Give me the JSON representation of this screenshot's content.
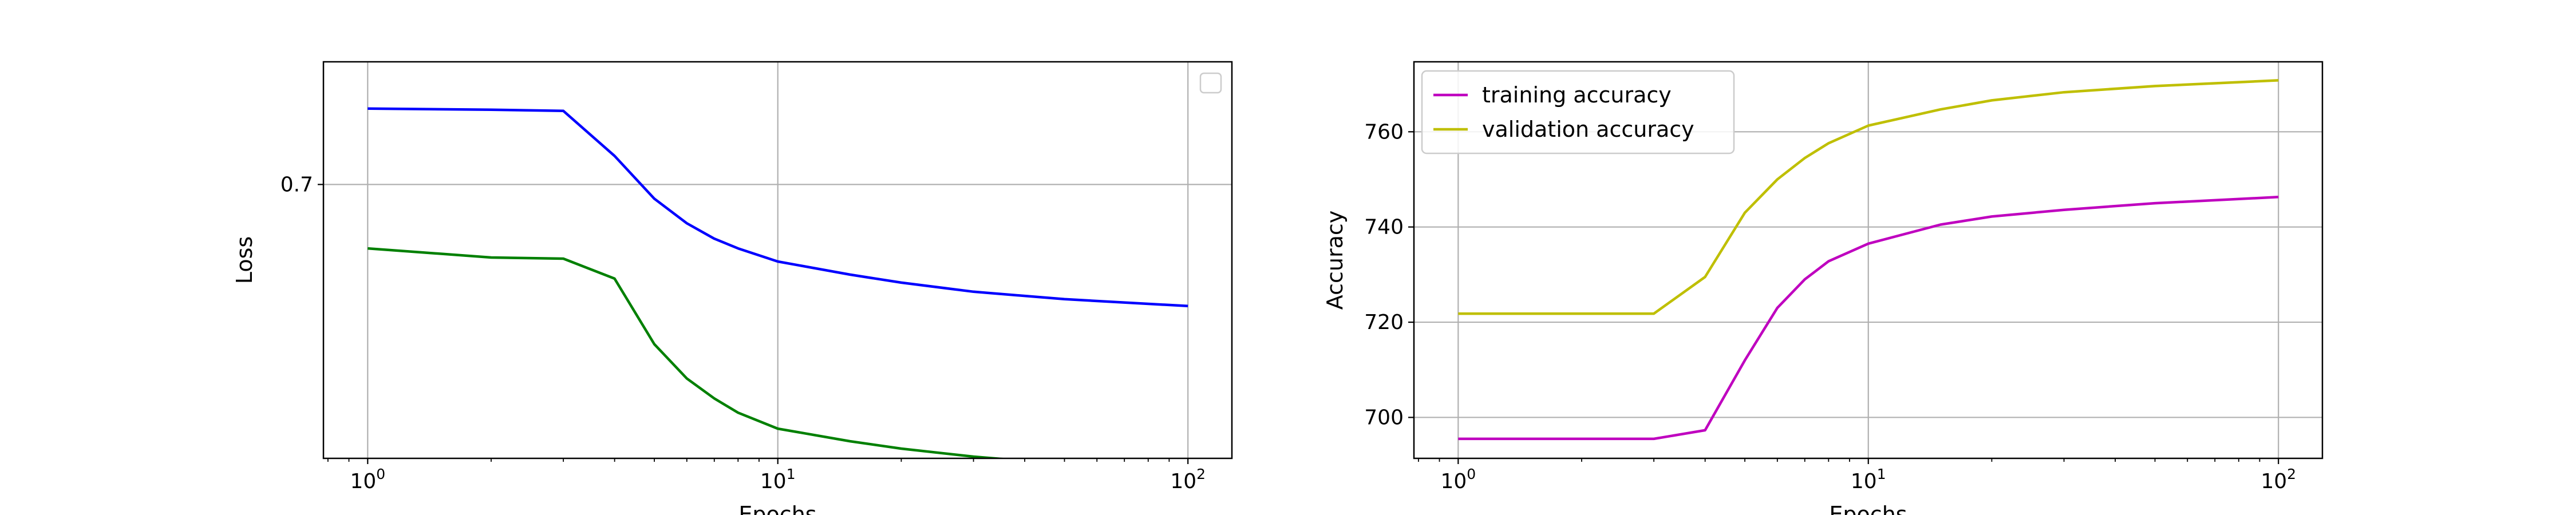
{
  "chart_data": [
    {
      "type": "line",
      "xlabel": "Epochs",
      "ylabel": "Loss",
      "xscale": "log",
      "xlim": [
        0.78,
        128
      ],
      "ylim": [
        0.22,
        0.915
      ],
      "grid": true,
      "legend": {
        "placement": "upper right",
        "entries": []
      },
      "xticks": [
        {
          "value": 1,
          "base": "10",
          "exp": "0"
        },
        {
          "value": 10,
          "base": "10",
          "exp": "1"
        },
        {
          "value": 100,
          "base": "10",
          "exp": "2"
        }
      ],
      "yticks": [
        {
          "value": 0.7,
          "label": "0.7"
        }
      ],
      "series": [
        {
          "color": "#0000ff",
          "points": [
            [
              1,
              0.833
            ],
            [
              2,
              0.831
            ],
            [
              3,
              0.829
            ],
            [
              4,
              0.75
            ],
            [
              5,
              0.675
            ],
            [
              6,
              0.632
            ],
            [
              7,
              0.605
            ],
            [
              8,
              0.588
            ],
            [
              10,
              0.565
            ],
            [
              15,
              0.542
            ],
            [
              20,
              0.528
            ],
            [
              30,
              0.512
            ],
            [
              50,
              0.499
            ],
            [
              100,
              0.487
            ]
          ]
        },
        {
          "color": "#008000",
          "points": [
            [
              1,
              0.588
            ],
            [
              2,
              0.572
            ],
            [
              3,
              0.57
            ],
            [
              4,
              0.535
            ],
            [
              5,
              0.42
            ],
            [
              6,
              0.36
            ],
            [
              7,
              0.325
            ],
            [
              8,
              0.3
            ],
            [
              10,
              0.272
            ],
            [
              15,
              0.25
            ],
            [
              20,
              0.237
            ],
            [
              30,
              0.223
            ],
            [
              50,
              0.21
            ],
            [
              100,
              0.198
            ]
          ]
        }
      ]
    },
    {
      "type": "line",
      "xlabel": "Epochs",
      "ylabel": "Accuracy",
      "xscale": "log",
      "xlim": [
        0.78,
        128
      ],
      "ylim": [
        691.4,
        774.7
      ],
      "grid": true,
      "legend": {
        "placement": "upper left",
        "entries": [
          "training accuracy",
          "validation accuracy"
        ]
      },
      "xticks": [
        {
          "value": 1,
          "base": "10",
          "exp": "0"
        },
        {
          "value": 10,
          "base": "10",
          "exp": "1"
        },
        {
          "value": 100,
          "base": "10",
          "exp": "2"
        }
      ],
      "yticks": [
        {
          "value": 700,
          "label": "700"
        },
        {
          "value": 720,
          "label": "720"
        },
        {
          "value": 740,
          "label": "740"
        },
        {
          "value": 760,
          "label": "760"
        }
      ],
      "series": [
        {
          "name": "training accuracy",
          "color": "#bf00bf",
          "points": [
            [
              1,
              695.5
            ],
            [
              2,
              695.5
            ],
            [
              3,
              695.5
            ],
            [
              4,
              697.3
            ],
            [
              5,
              712
            ],
            [
              6,
              723
            ],
            [
              7,
              729
            ],
            [
              8,
              732.8
            ],
            [
              10,
              736.5
            ],
            [
              15,
              740.5
            ],
            [
              20,
              742.2
            ],
            [
              30,
              743.6
            ],
            [
              50,
              745
            ],
            [
              100,
              746.3
            ]
          ]
        },
        {
          "name": "validation accuracy",
          "color": "#bfbf00",
          "points": [
            [
              1,
              721.8
            ],
            [
              2,
              721.8
            ],
            [
              3,
              721.8
            ],
            [
              4,
              729.5
            ],
            [
              5,
              743
            ],
            [
              6,
              750
            ],
            [
              7,
              754.5
            ],
            [
              8,
              757.6
            ],
            [
              10,
              761.3
            ],
            [
              15,
              764.7
            ],
            [
              20,
              766.6
            ],
            [
              30,
              768.3
            ],
            [
              50,
              769.6
            ],
            [
              100,
              770.8
            ]
          ]
        }
      ]
    }
  ]
}
